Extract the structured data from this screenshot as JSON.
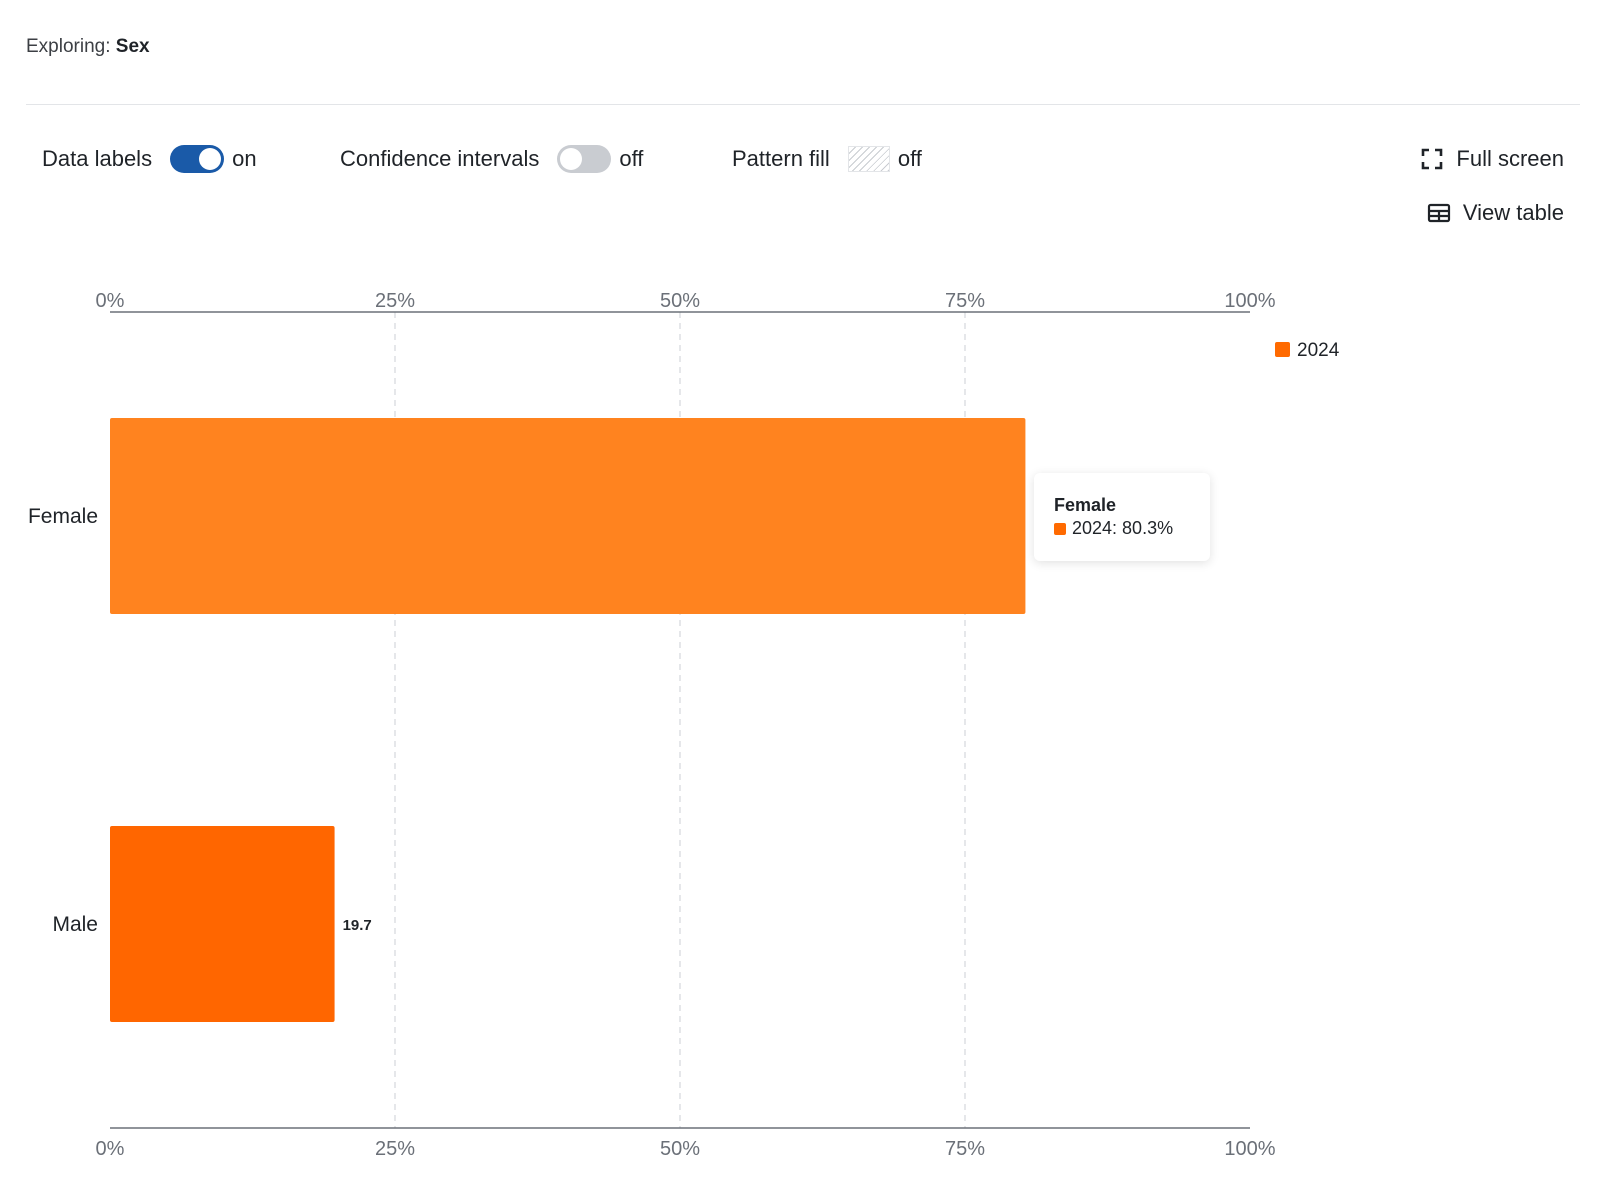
{
  "header": {
    "exploring_prefix": "Exploring:",
    "exploring_value": "Sex"
  },
  "controls": {
    "data_labels": {
      "label": "Data labels",
      "state": "on"
    },
    "confidence_intervals": {
      "label": "Confidence intervals",
      "state": "off"
    },
    "pattern_fill": {
      "label": "Pattern fill",
      "state": "off"
    }
  },
  "actions": {
    "full_screen": "Full screen",
    "view_table": "View table"
  },
  "tooltip": {
    "title": "Female",
    "row": "2024: 80.3%"
  },
  "colors": {
    "female_bar": "#ff831f",
    "male_bar": "#ff6600",
    "legend": "#ff6a00",
    "toggle_on": "#1a5aa8"
  },
  "chart_data": {
    "type": "bar",
    "orientation": "horizontal",
    "categories": [
      "Female",
      "Male"
    ],
    "series": [
      {
        "name": "2024",
        "values": [
          80.3,
          19.7
        ]
      }
    ],
    "data_labels": [
      "",
      "19.7"
    ],
    "xlim": [
      0,
      100
    ],
    "x_ticks": [
      "0%",
      "25%",
      "50%",
      "75%",
      "100%"
    ],
    "grid": "vertical dashed",
    "legend_position": "top-right"
  }
}
